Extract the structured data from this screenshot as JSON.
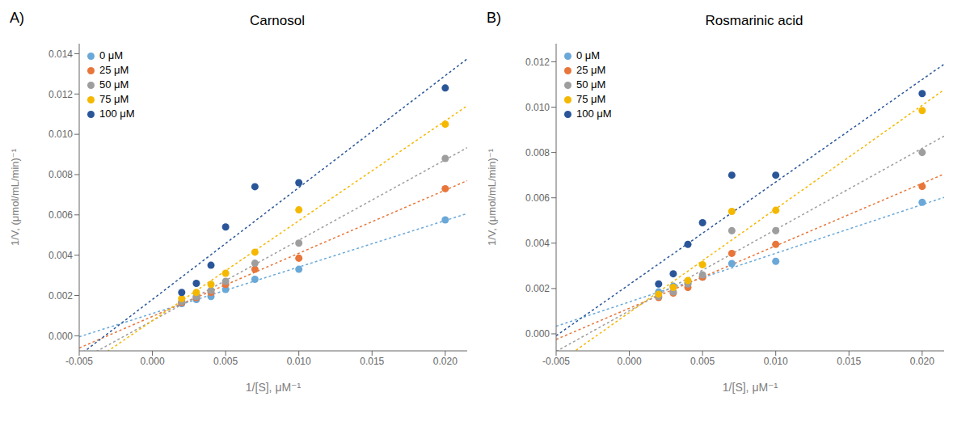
{
  "chart_data": [
    {
      "type": "scatter",
      "title": "Carnosol",
      "annotations": [
        "A)"
      ],
      "x_label": "1/[S], μM⁻¹",
      "y_label": "1/V, (μmol/mL/min)⁻¹",
      "x": [
        0.002,
        0.003,
        0.004,
        0.005,
        0.007,
        0.01,
        0.02
      ],
      "series": [
        {
          "name": "0 μM",
          "color": "#6aA8D8",
          "marker": "circle",
          "line_style": "dotted",
          "values": [
            0.0016,
            0.0018,
            0.00195,
            0.0023,
            0.0028,
            0.0033,
            0.00575
          ],
          "fit": {
            "x": [
              -0.005,
              0.0215
            ],
            "y": [
              -5.06173e-05,
              0.00606728
            ]
          }
        },
        {
          "name": "25 μM",
          "color": "#E8763A",
          "marker": "circle",
          "line_style": "dotted",
          "values": [
            0.00165,
            0.0019,
            0.00215,
            0.00255,
            0.0033,
            0.00385,
            0.0073
          ],
          "fit": {
            "x": [
              -0.005,
              0.0215
            ],
            "y": [
              -0.000609321,
              0.00769974
            ]
          }
        },
        {
          "name": "50 μM",
          "color": "#9E9E9E",
          "marker": "circle",
          "line_style": "dotted",
          "values": [
            0.0017,
            0.00195,
            0.00225,
            0.0027,
            0.0036,
            0.0046,
            0.0088
          ],
          "fit": {
            "x": [
              -0.005,
              0.0215
            ],
            "y": [
              -0.00124994,
              0.00933452
            ]
          }
        },
        {
          "name": "75 μM",
          "color": "#F5B800",
          "marker": "circle",
          "line_style": "dotted",
          "values": [
            0.00185,
            0.00215,
            0.00255,
            0.0031,
            0.00415,
            0.00625,
            0.0105
          ],
          "fit": {
            "x": [
              -0.005,
              0.0215
            ],
            "y": [
              -0.00173117,
              0.0114166
            ]
          }
        },
        {
          "name": "100 μM",
          "color": "#2A5699",
          "marker": "circle",
          "line_style": "dotted",
          "values": [
            0.00215,
            0.0026,
            0.0035,
            0.0054,
            0.0074,
            0.0076,
            0.0123
          ],
          "fit": {
            "x": [
              -0.005,
              0.0215
            ],
            "y": [
              -0.000974259,
              0.0137455
            ]
          }
        }
      ],
      "xlim": [
        -0.005,
        0.0215
      ],
      "ylim": [
        -0.00075,
        0.0145
      ],
      "xticks": [
        {
          "value": -0.005,
          "label": "-0.005"
        },
        {
          "value": 0.0,
          "label": "0.000"
        },
        {
          "value": 0.005,
          "label": "0.005"
        },
        {
          "value": 0.01,
          "label": "0.010"
        },
        {
          "value": 0.015,
          "label": "0.015"
        },
        {
          "value": 0.02,
          "label": "0.020"
        }
      ],
      "yticks": [
        {
          "value": 0.0,
          "label": "0.000"
        },
        {
          "value": 0.002,
          "label": "0.002"
        },
        {
          "value": 0.004,
          "label": "0.004"
        },
        {
          "value": 0.006,
          "label": "0.006"
        },
        {
          "value": 0.008,
          "label": "0.008"
        },
        {
          "value": 0.01,
          "label": "0.010"
        },
        {
          "value": 0.012,
          "label": "0.012"
        },
        {
          "value": 0.014,
          "label": "0.014"
        }
      ],
      "legend": "upper left",
      "grid": false
    },
    {
      "type": "scatter",
      "title": "Rosmarinic acid",
      "annotations": [
        "B)"
      ],
      "x_label": "1/[S], μM⁻¹",
      "y_label": "1/V, (μmol/mL/min)⁻¹",
      "x": [
        0.002,
        0.003,
        0.004,
        0.005,
        0.007,
        0.01,
        0.02
      ],
      "series": [
        {
          "name": "0 μM",
          "color": "#6aA8D8",
          "marker": "circle",
          "line_style": "dotted",
          "values": [
            0.00185,
            0.0021,
            0.00225,
            0.0025,
            0.0031,
            0.0032,
            0.0058
          ],
          "fit": {
            "x": [
              -0.005,
              0.0215
            ],
            "y": [
              0.000335309,
              0.00602136
            ]
          }
        },
        {
          "name": "25 μM",
          "color": "#E8763A",
          "marker": "circle",
          "line_style": "dotted",
          "values": [
            0.0016,
            0.0018,
            0.00205,
            0.0025,
            0.00355,
            0.00395,
            0.0065
          ],
          "fit": {
            "x": [
              -0.005,
              0.0215
            ],
            "y": [
              -0.000247407,
              0.00704991
            ]
          }
        },
        {
          "name": "50 μM",
          "color": "#9E9E9E",
          "marker": "circle",
          "line_style": "dotted",
          "values": [
            0.00165,
            0.00185,
            0.0022,
            0.0026,
            0.00455,
            0.00455,
            0.008
          ],
          "fit": {
            "x": [
              -0.005,
              0.0215
            ],
            "y": [
              -0.000774568,
              0.0087229
            ]
          }
        },
        {
          "name": "75 μM",
          "color": "#F5B800",
          "marker": "circle",
          "line_style": "dotted",
          "values": [
            0.00175,
            0.00205,
            0.00235,
            0.00305,
            0.0054,
            0.00545,
            0.00985
          ],
          "fit": {
            "x": [
              -0.005,
              0.0215
            ],
            "y": [
              -0.00134284,
              0.010767
            ]
          }
        },
        {
          "name": "100 μM",
          "color": "#2A5699",
          "marker": "circle",
          "line_style": "dotted",
          "values": [
            0.0022,
            0.00265,
            0.00395,
            0.0049,
            0.007,
            0.007,
            0.0106
          ],
          "fit": {
            "x": [
              -0.005,
              0.0215
            ],
            "y": [
              -8.17901e-05,
              0.0118964
            ]
          }
        }
      ],
      "xlim": [
        -0.005,
        0.0215
      ],
      "ylim": [
        -0.00075,
        0.0128
      ],
      "xticks": [
        {
          "value": -0.005,
          "label": "-0.005"
        },
        {
          "value": 0.0,
          "label": "0.000"
        },
        {
          "value": 0.005,
          "label": "0.005"
        },
        {
          "value": 0.01,
          "label": "0.010"
        },
        {
          "value": 0.015,
          "label": "0.015"
        },
        {
          "value": 0.02,
          "label": "0.020"
        }
      ],
      "yticks": [
        {
          "value": 0.0,
          "label": "0.000"
        },
        {
          "value": 0.002,
          "label": "0.002"
        },
        {
          "value": 0.004,
          "label": "0.004"
        },
        {
          "value": 0.006,
          "label": "0.006"
        },
        {
          "value": 0.008,
          "label": "0.008"
        },
        {
          "value": 0.01,
          "label": "0.010"
        },
        {
          "value": 0.012,
          "label": "0.012"
        }
      ],
      "legend": "upper left",
      "grid": false
    }
  ]
}
